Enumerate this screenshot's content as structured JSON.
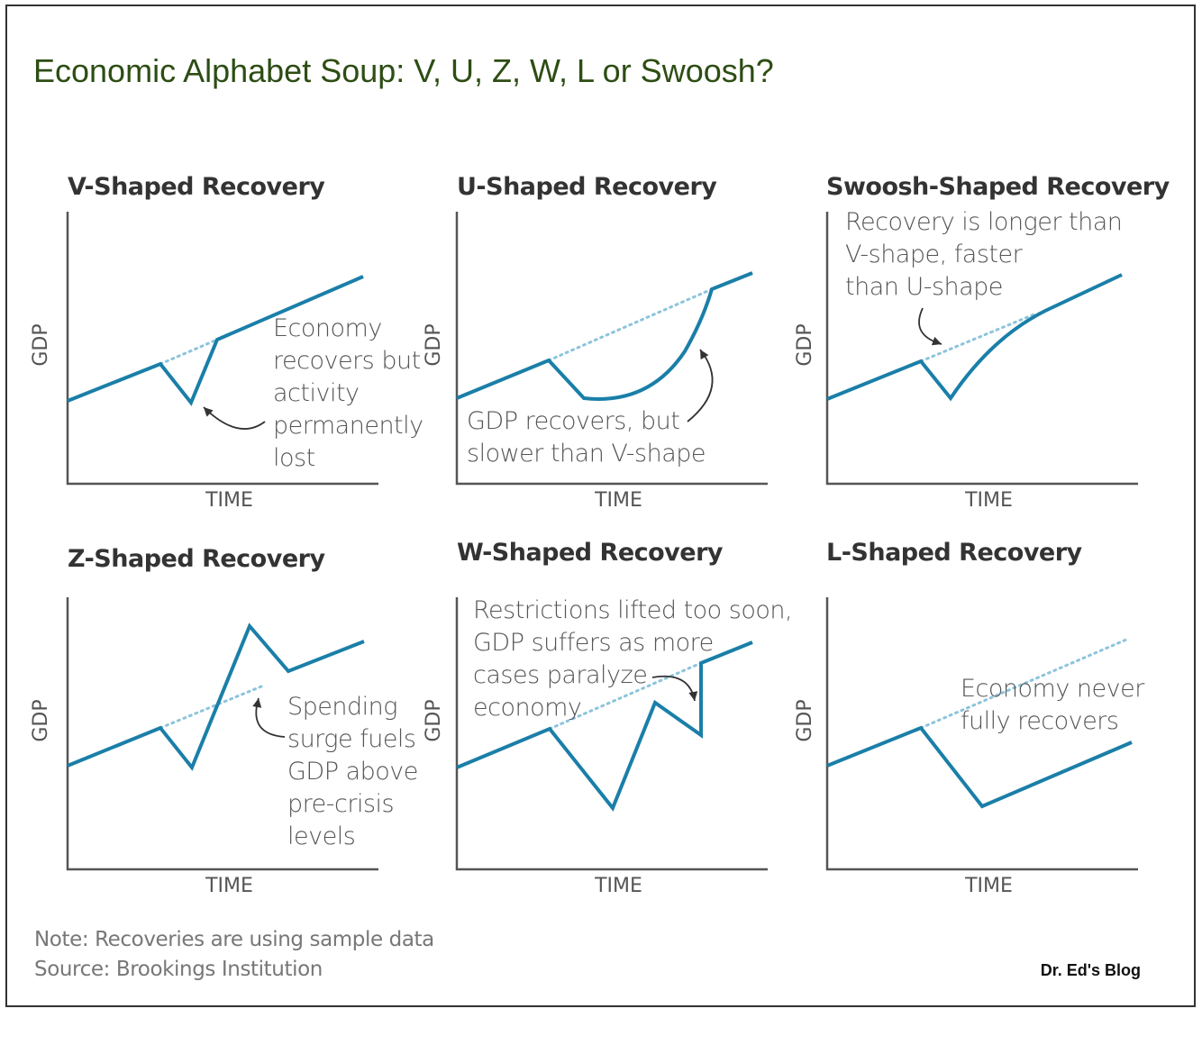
{
  "title": "Economic Alphabet Soup: V, U, Z, W, L or Swoosh?",
  "panels": [
    {
      "title": "V-Shaped Recovery",
      "y_label": "GDP",
      "x_label": "TIME",
      "annotation": [
        "Economy",
        "recovers but",
        "activity",
        "permanently",
        "lost"
      ]
    },
    {
      "title": "U-Shaped Recovery",
      "y_label": "GDP",
      "x_label": "TIME",
      "annotation": [
        "GDP recovers, but",
        "slower than V-shape"
      ]
    },
    {
      "title": "Swoosh-Shaped Recovery",
      "y_label": "GDP",
      "x_label": "TIME",
      "annotation": [
        "Recovery is longer than",
        "V-shape, faster",
        "than U-shape"
      ]
    },
    {
      "title": "Z-Shaped Recovery",
      "y_label": "GDP",
      "x_label": "TIME",
      "annotation": [
        "Spending",
        "surge fuels",
        "GDP above",
        "pre-crisis",
        "levels"
      ]
    },
    {
      "title": "W-Shaped Recovery",
      "y_label": "GDP",
      "x_label": "TIME",
      "annotation": [
        "Restrictions lifted too soon,",
        "GDP suffers as more",
        "cases paralyze",
        "economy"
      ]
    },
    {
      "title": "L-Shaped Recovery",
      "y_label": "GDP",
      "x_label": "TIME",
      "annotation": [
        "Economy never",
        "fully recovers"
      ]
    }
  ],
  "note": "Note: Recoveries are using sample data",
  "source": "Source: Brookings Institution",
  "credit": "Dr. Ed's Blog"
}
